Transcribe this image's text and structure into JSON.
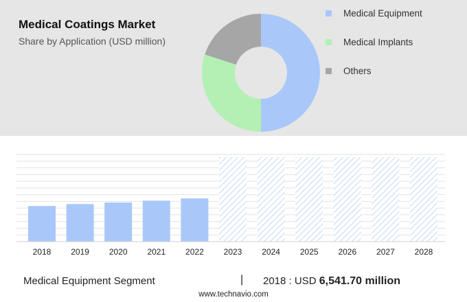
{
  "title": "Medical Coatings Market",
  "subtitle": "Share by Application (USD million)",
  "colors": {
    "equipment": "#a9c8f9",
    "implants": "#b4f0b4",
    "others": "#a6a6a6",
    "bar": "#a9c8f9",
    "forecast_hatch": "#c5d8f6",
    "grid": "#e2e2e2"
  },
  "chart_data": [
    {
      "type": "pie",
      "title": "Share by Application (USD million)",
      "donut": true,
      "legend_position": "right",
      "slices": [
        {
          "label": "Medical Equipment",
          "value": 50,
          "color": "#a9c8f9"
        },
        {
          "label": "Medical Implants",
          "value": 30,
          "color": "#b4f0b4"
        },
        {
          "label": "Others",
          "value": 20,
          "color": "#a6a6a6"
        }
      ]
    },
    {
      "type": "bar",
      "categories": [
        "2018",
        "2019",
        "2020",
        "2021",
        "2022",
        "2023",
        "2024",
        "2025",
        "2026",
        "2027",
        "2028"
      ],
      "values": [
        6541.7,
        6890,
        7180,
        7520,
        7920,
        null,
        null,
        null,
        null,
        null,
        null
      ],
      "forecast": [
        false,
        false,
        false,
        false,
        false,
        true,
        true,
        true,
        true,
        true,
        true
      ],
      "ylim": [
        0,
        16000
      ],
      "grid": true
    }
  ],
  "footer": {
    "segment": "Medical Equipment Segment",
    "separator": "|",
    "year_label": "2018 : USD",
    "value": "6,541.70 million"
  },
  "source": "www.technavio.com"
}
